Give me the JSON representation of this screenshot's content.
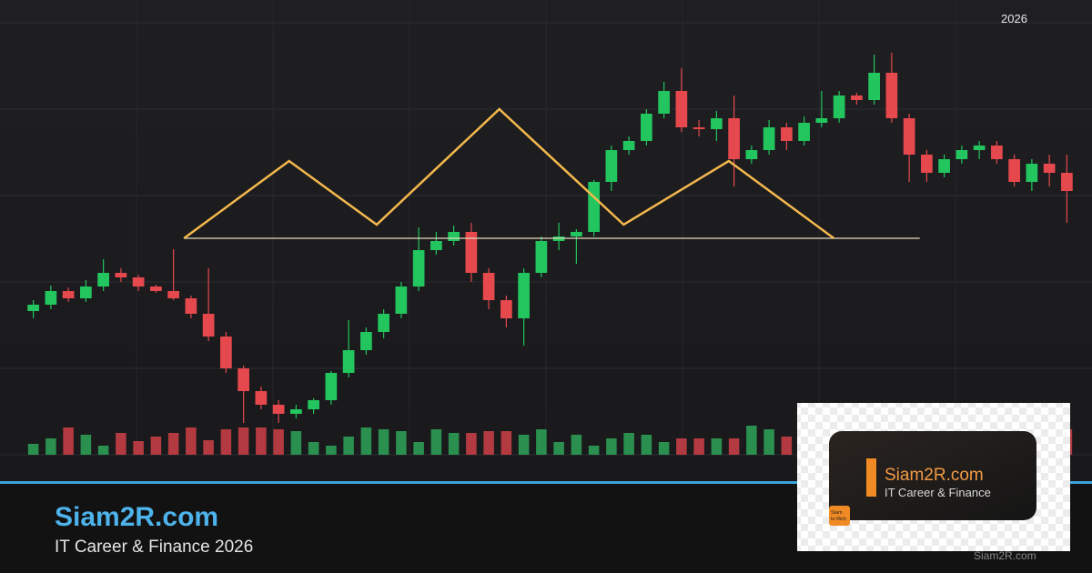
{
  "header": {
    "year": "2026"
  },
  "brand": {
    "title": "Siam2R.com",
    "subtitle": "IT Career & Finance 2026"
  },
  "logo_card": {
    "title": "Siam2R.com",
    "subtitle": "IT Career & Finance",
    "icon_text": [
      "Siam",
      "to Rich"
    ]
  },
  "watermark": "Siam2R.com",
  "chart_data": {
    "type": "candlestick",
    "up_color": "#22c55e",
    "down_color": "#e5484d",
    "up_volume_color": "#2a8f4f",
    "down_volume_color": "#b23a40",
    "xlim": [
      -0.5,
      59.5
    ],
    "ylim": [
      0,
      480
    ],
    "volume_ylim": [
      0,
      100
    ],
    "ohlc": [
      [
        158,
        170,
        150,
        165
      ],
      [
        165,
        186,
        160,
        180
      ],
      [
        180,
        184,
        168,
        172
      ],
      [
        172,
        192,
        168,
        185
      ],
      [
        185,
        215,
        180,
        200
      ],
      [
        200,
        205,
        190,
        195
      ],
      [
        195,
        198,
        180,
        185
      ],
      [
        185,
        187,
        178,
        180
      ],
      [
        180,
        226,
        170,
        172
      ],
      [
        172,
        175,
        150,
        155
      ],
      [
        155,
        205,
        125,
        130
      ],
      [
        130,
        135,
        90,
        95
      ],
      [
        95,
        98,
        35,
        70
      ],
      [
        70,
        75,
        50,
        55
      ],
      [
        55,
        60,
        35,
        45
      ],
      [
        45,
        55,
        40,
        50
      ],
      [
        50,
        62,
        45,
        60
      ],
      [
        60,
        92,
        55,
        90
      ],
      [
        90,
        148,
        85,
        115
      ],
      [
        115,
        140,
        110,
        135
      ],
      [
        135,
        160,
        128,
        155
      ],
      [
        155,
        190,
        150,
        185
      ],
      [
        185,
        250,
        180,
        225
      ],
      [
        225,
        245,
        220,
        235
      ],
      [
        235,
        252,
        230,
        245
      ],
      [
        245,
        255,
        190,
        200
      ],
      [
        200,
        205,
        160,
        170
      ],
      [
        170,
        175,
        140,
        150
      ],
      [
        150,
        205,
        120,
        200
      ],
      [
        200,
        240,
        195,
        235
      ],
      [
        235,
        255,
        225,
        240
      ],
      [
        240,
        248,
        210,
        245
      ],
      [
        245,
        302,
        240,
        300
      ],
      [
        300,
        340,
        290,
        335
      ],
      [
        335,
        350,
        330,
        345
      ],
      [
        345,
        380,
        340,
        375
      ],
      [
        375,
        410,
        370,
        400
      ],
      [
        400,
        425,
        355,
        360
      ],
      [
        360,
        368,
        350,
        358
      ],
      [
        358,
        378,
        345,
        370
      ],
      [
        370,
        395,
        295,
        325
      ],
      [
        325,
        340,
        320,
        335
      ],
      [
        335,
        368,
        330,
        360
      ],
      [
        360,
        365,
        335,
        345
      ],
      [
        345,
        372,
        340,
        365
      ],
      [
        365,
        400,
        360,
        370
      ],
      [
        370,
        400,
        365,
        395
      ],
      [
        395,
        398,
        385,
        390
      ],
      [
        390,
        440,
        385,
        420
      ],
      [
        420,
        442,
        365,
        370
      ],
      [
        370,
        375,
        300,
        330
      ],
      [
        330,
        335,
        300,
        310
      ],
      [
        310,
        330,
        305,
        325
      ],
      [
        325,
        340,
        320,
        335
      ],
      [
        335,
        345,
        325,
        340
      ],
      [
        340,
        345,
        320,
        325
      ],
      [
        325,
        330,
        295,
        300
      ],
      [
        300,
        325,
        290,
        320
      ],
      [
        320,
        330,
        295,
        310
      ],
      [
        310,
        330,
        255,
        290
      ]
    ],
    "volume": [
      12,
      18,
      30,
      22,
      10,
      24,
      15,
      20,
      24,
      30,
      16,
      28,
      30,
      30,
      28,
      26,
      14,
      10,
      20,
      30,
      28,
      26,
      14,
      28,
      24,
      24,
      26,
      26,
      22,
      28,
      14,
      22,
      10,
      18,
      24,
      22,
      14,
      18,
      18,
      18,
      18,
      32,
      28,
      20,
      14,
      14,
      18,
      24,
      20,
      22,
      18,
      16,
      22,
      14,
      20,
      16,
      26,
      18,
      24,
      28
    ],
    "pattern_line": {
      "x": [
        8.6,
        14.6,
        19.6,
        26.6,
        33.7,
        39.7,
        45.7
      ],
      "y": [
        238,
        323,
        253,
        380,
        253,
        323,
        238
      ],
      "color": "#f4b84d"
    },
    "neckline": {
      "x": [
        8.6,
        50.6
      ],
      "y": 238,
      "color": "#e6dcc0"
    }
  }
}
